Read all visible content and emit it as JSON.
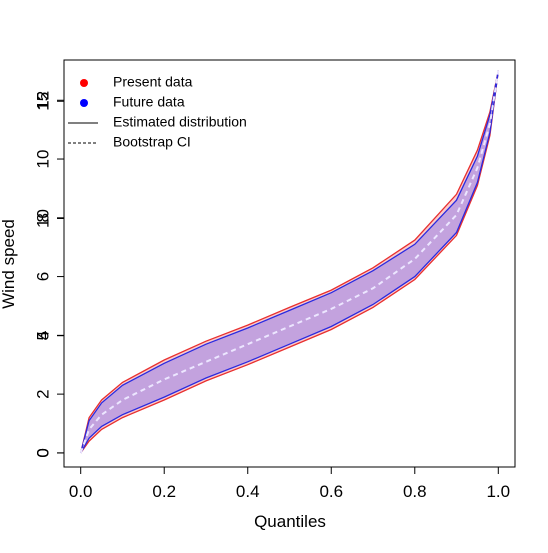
{
  "chart_data": {
    "type": "line",
    "x_label": "Quantiles",
    "y_label": "Wind speed",
    "x": [
      0,
      0.02,
      0.05,
      0.1,
      0.2,
      0.3,
      0.4,
      0.5,
      0.6,
      0.7,
      0.8,
      0.9,
      0.95,
      0.98,
      1.0
    ],
    "series": [
      {
        "color": "#e8302f",
        "values": [
          0,
          1.2,
          1.8,
          2.4,
          3.16,
          3.8,
          4.35,
          4.95,
          5.54,
          6.3,
          7.24,
          8.8,
          10.3,
          11.6,
          13
        ]
      },
      {
        "color": "#e8302f",
        "values": [
          0,
          0.4,
          0.8,
          1.2,
          1.8,
          2.45,
          3.0,
          3.6,
          4.2,
          4.95,
          5.9,
          7.4,
          9.1,
          10.8,
          13
        ]
      },
      {
        "color": "#2a2ae0",
        "values": [
          0,
          1.1,
          1.7,
          2.3,
          3.05,
          3.7,
          4.25,
          4.85,
          5.45,
          6.2,
          7.1,
          8.6,
          10.1,
          11.5,
          13
        ]
      },
      {
        "color": "#2a2ae0",
        "values": [
          0,
          0.5,
          0.9,
          1.3,
          1.9,
          2.55,
          3.1,
          3.7,
          4.3,
          5.05,
          6.0,
          7.5,
          9.2,
          10.9,
          13
        ]
      },
      {
        "color": "#ece6ff",
        "values": [
          0,
          0.8,
          1.3,
          1.8,
          2.5,
          3.1,
          3.7,
          4.3,
          4.9,
          5.6,
          6.6,
          8.1,
          9.7,
          11.2,
          13
        ]
      }
    ],
    "legend": [
      {
        "label": "Present data",
        "key": "point",
        "color": "#ff0000"
      },
      {
        "label": "Future data",
        "key": "point",
        "color": "#0000ff"
      },
      {
        "label": "Estimated distribution",
        "key": "solid",
        "color": "#000000"
      },
      {
        "label": "Bootstrap CI",
        "key": "dashed",
        "color": "#000000"
      }
    ],
    "legend_position": "top-left",
    "xlim": [
      -0.04,
      1.04
    ],
    "xticks": [
      {
        "value": 0,
        "label": "0.0"
      },
      0.2,
      0.4,
      0.6,
      0.8,
      {
        "value": 1,
        "label": "1.0"
      }
    ],
    "ylim": [
      -0.48,
      13.37
    ],
    "yticks": [
      0,
      2,
      4,
      6,
      8,
      10,
      12
    ],
    "y2lim": [
      -0.6,
      16.76
    ],
    "y2ticks": [
      0,
      5,
      10,
      15
    ]
  }
}
